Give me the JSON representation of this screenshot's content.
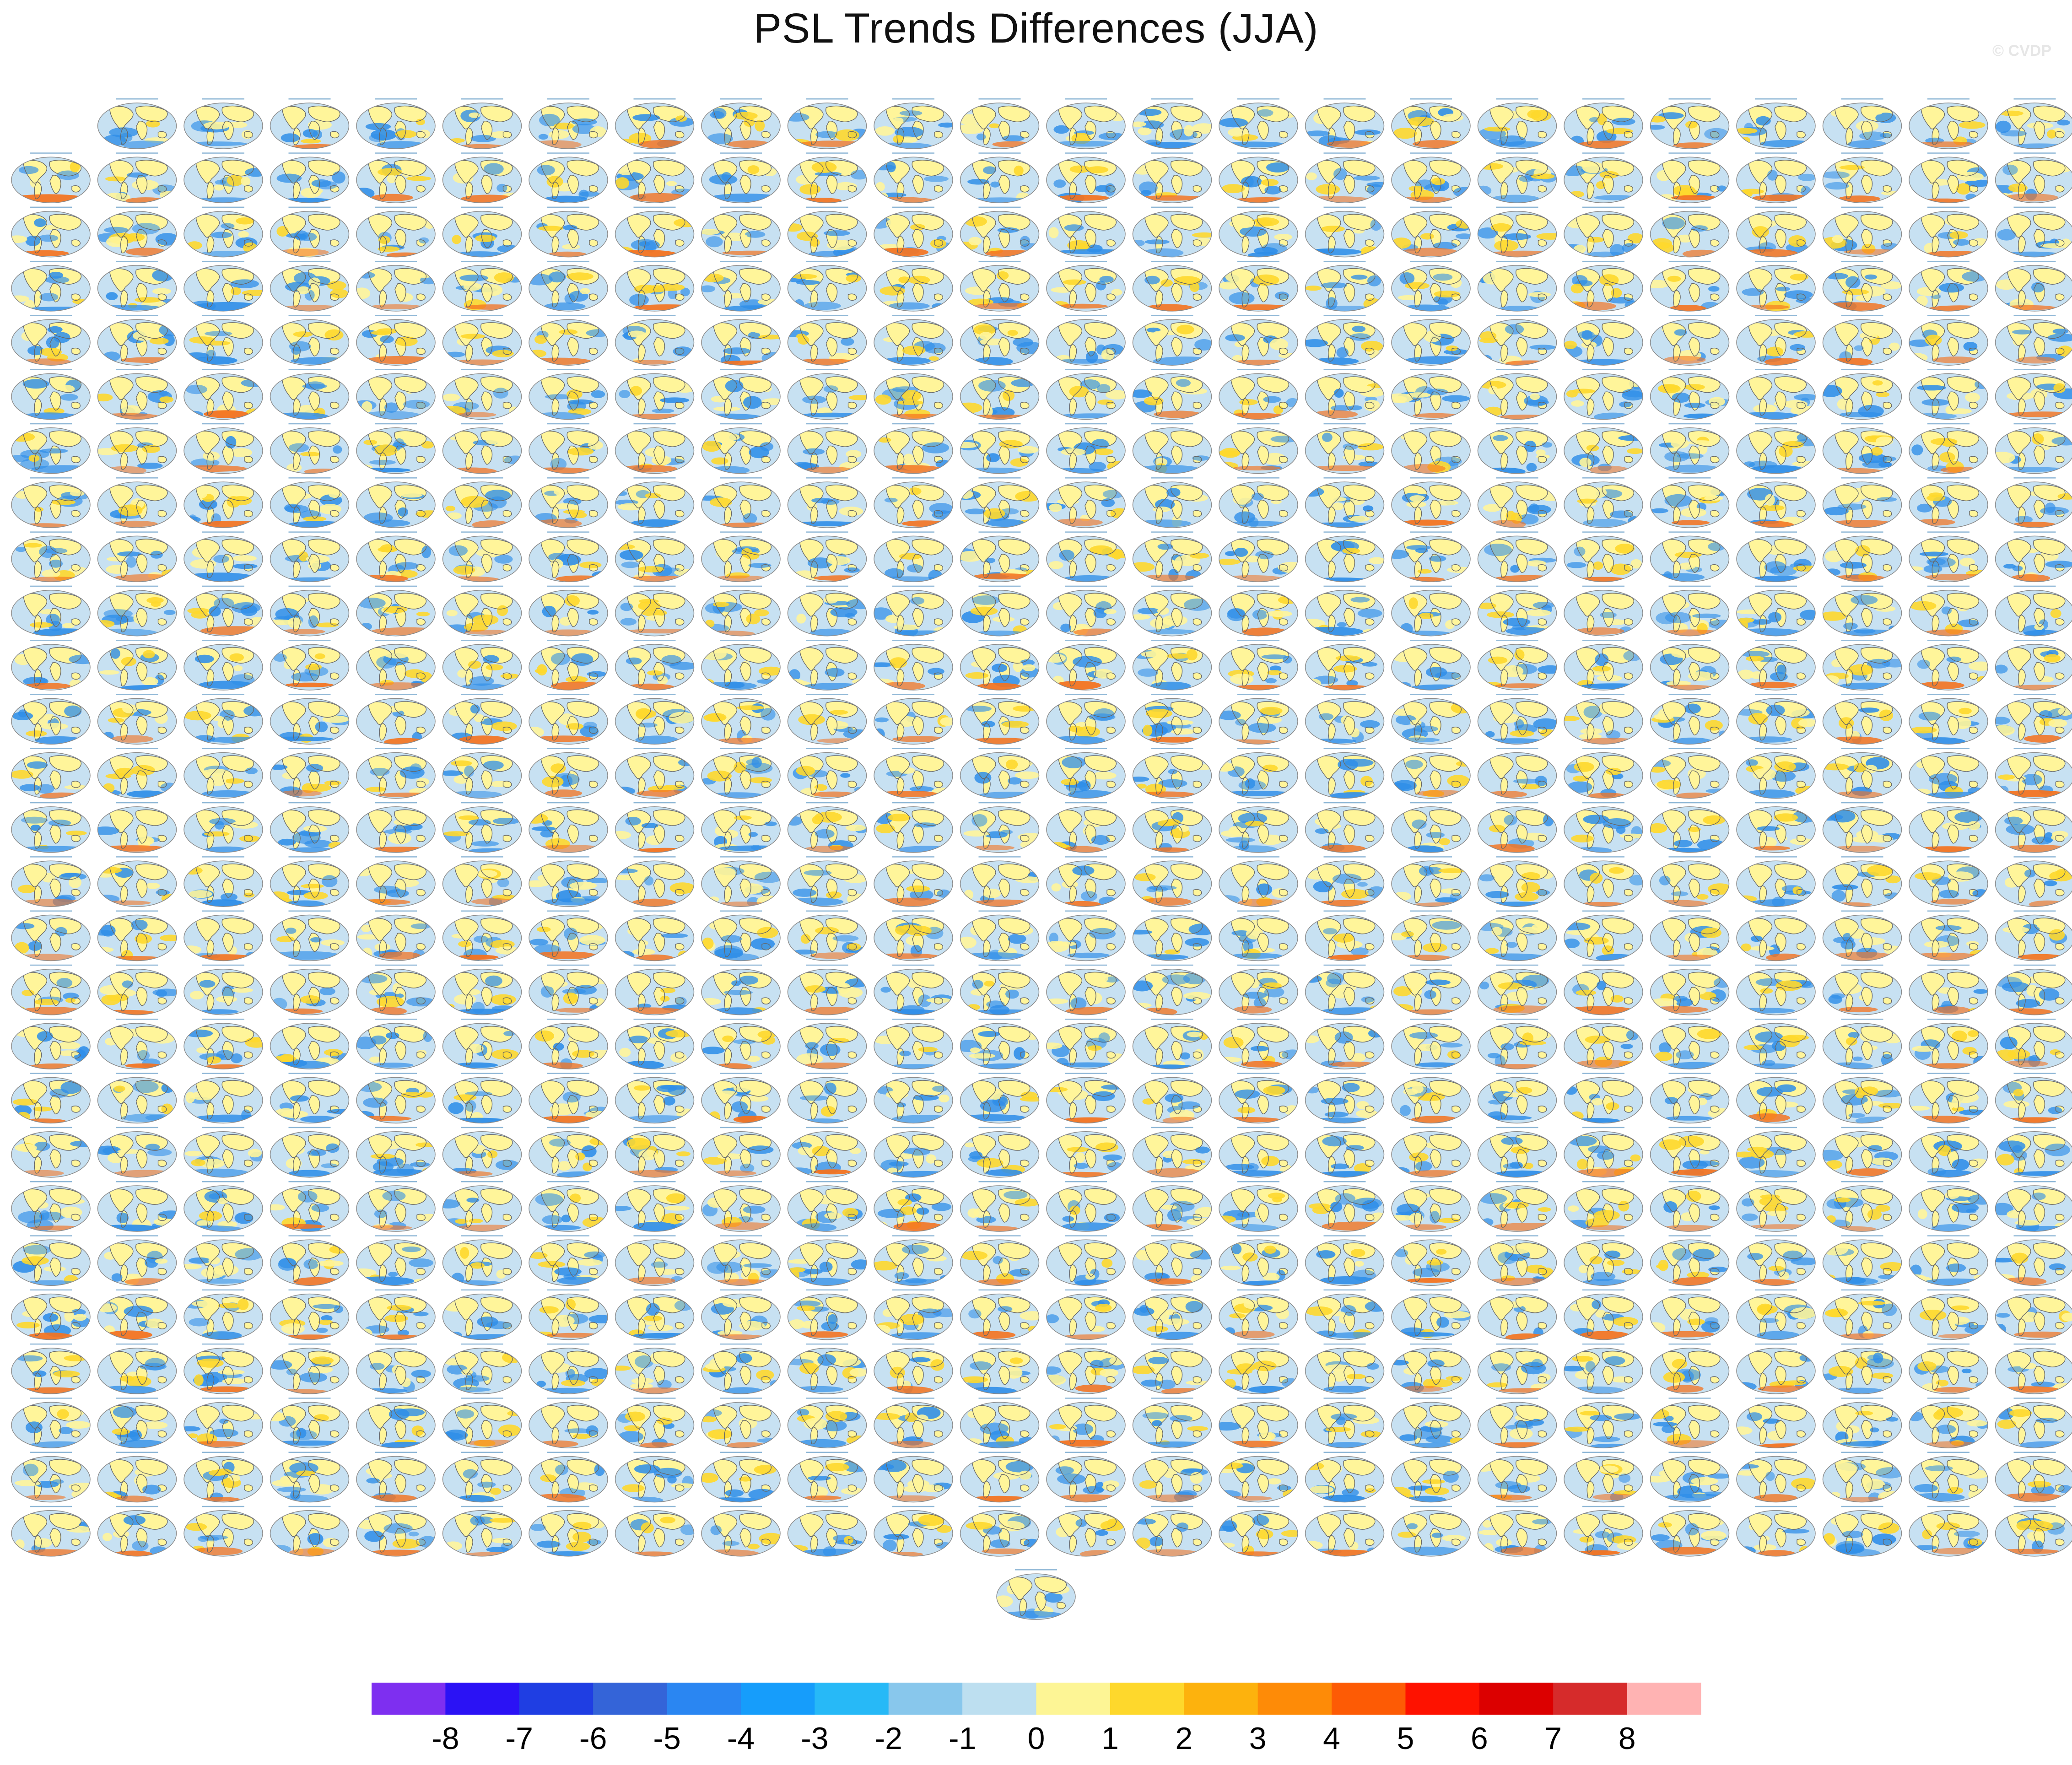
{
  "title": "PSL Trends Differences (JJA)",
  "watermark": "© CVDP",
  "grid": {
    "rows": 27,
    "columns": 24,
    "first_row_columns": 23,
    "extra_panels_bottom": 1
  },
  "palette": {
    "ocean_base": "#c7e1f2",
    "land_yellow": "#fff59a",
    "negative_blue": "#2f8ee8",
    "positive_red": "#f4731f"
  },
  "colorbar": {
    "colors": [
      "#7e2ff0",
      "#2b12f5",
      "#1f3ee3",
      "#3464d8",
      "#2a86f2",
      "#169dfb",
      "#27b9f7",
      "#88c7ec",
      "#bddff0",
      "#fdf595",
      "#fed82c",
      "#fdb20d",
      "#fe8b07",
      "#fd5b05",
      "#fe1200",
      "#dc0000",
      "#d62b2b",
      "#ffb3b3"
    ],
    "labels": [
      "-8",
      "-7",
      "-6",
      "-5",
      "-4",
      "-3",
      "-2",
      "-1",
      "0",
      "1",
      "2",
      "3",
      "4",
      "5",
      "6",
      "7",
      "8"
    ]
  }
}
